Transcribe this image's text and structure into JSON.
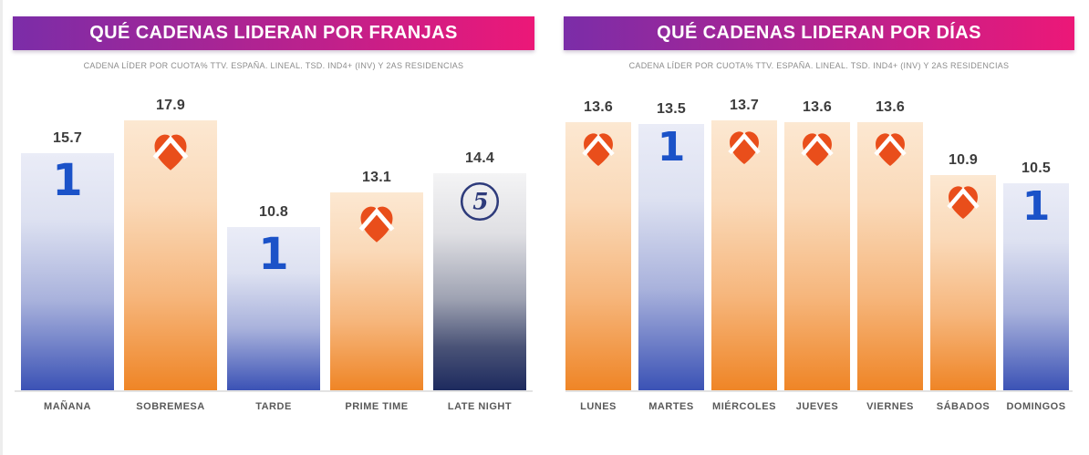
{
  "page": {
    "background": "#FFFFFF"
  },
  "colors": {
    "header_gradient_start": "#7B2DA8",
    "header_gradient_end": "#EC1878",
    "title_text": "#FFFFFF",
    "subtitle_text": "#8C8C8C",
    "value_label": "#3C3C3C",
    "category_label": "#595959",
    "baseline": "#E3E3E3",
    "bar_blue_top": "#EAECF7",
    "bar_blue_bottom": "#3B52B5",
    "bar_orange_top": "#FCE8D2",
    "bar_orange_bottom": "#EF8526",
    "bar_navy_top": "#F4F4F5",
    "bar_navy_bottom": "#1D2A5E",
    "la1_blue": "#1B52C8",
    "antena3_orange": "#E94E1B",
    "telecinco_navy": "#2E3B7B"
  },
  "logos": {
    "la1": {
      "name": "La 1",
      "glyph": "1"
    },
    "antena3": {
      "name": "Antena 3"
    },
    "telecinco": {
      "name": "Telecinco",
      "glyph": "5"
    }
  },
  "chart_data": [
    {
      "type": "bar",
      "title": "QUÉ CADENAS LIDERAN POR FRANJAS",
      "subtitle": "CADENA LÍDER POR CUOTA% TTV. ESPAÑA. LINEAL. TSD. IND4+ (INV) Y 2AS RESIDENCIAS",
      "categories": [
        "MAÑANA",
        "SOBREMESA",
        "TARDE",
        "PRIME TIME",
        "LATE NIGHT"
      ],
      "values": [
        15.7,
        17.9,
        10.8,
        13.1,
        14.4
      ],
      "leaders": [
        "la1",
        "antena3",
        "la1",
        "antena3",
        "telecinco"
      ],
      "bar_styles": [
        "blue",
        "orange",
        "blue",
        "orange",
        "navy"
      ],
      "value_labels_shown": true,
      "grid": false,
      "axes_shown": false,
      "ylim": [
        0,
        17.9
      ]
    },
    {
      "type": "bar",
      "title": "QUÉ CADENAS LIDERAN POR DÍAS",
      "subtitle": "CADENA LÍDER POR CUOTA% TTV. ESPAÑA. LINEAL. TSD. IND4+ (INV) Y 2AS RESIDENCIAS",
      "categories": [
        "LUNES",
        "MARTES",
        "MIÉRCOLES",
        "JUEVES",
        "VIERNES",
        "SÁBADOS",
        "DOMINGOS"
      ],
      "values": [
        13.6,
        13.5,
        13.7,
        13.6,
        13.6,
        10.9,
        10.5
      ],
      "leaders": [
        "antena3",
        "la1",
        "antena3",
        "antena3",
        "antena3",
        "antena3",
        "la1"
      ],
      "bar_styles": [
        "orange",
        "blue",
        "orange",
        "orange",
        "orange",
        "orange",
        "blue"
      ],
      "value_labels_shown": true,
      "grid": false,
      "axes_shown": false,
      "ylim": [
        0,
        13.7
      ]
    }
  ]
}
